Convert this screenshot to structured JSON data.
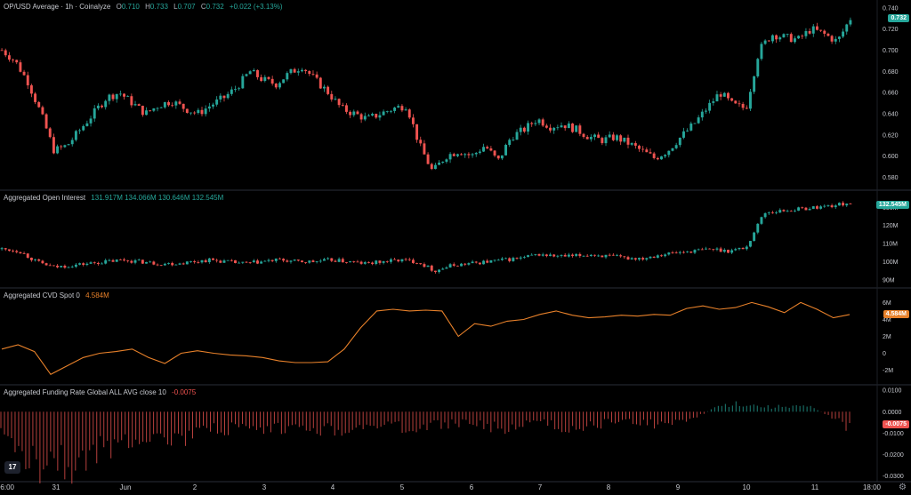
{
  "main": {
    "title": "OP/USD Average · 1h · Coinalyze",
    "o_label": "O",
    "o": "0.710",
    "h_label": "H",
    "h": "0.733",
    "l_label": "L",
    "l": "0.707",
    "c_label": "C",
    "c": "0.732",
    "change": "+0.022 (+3.13%)",
    "last_tag": "0.732"
  },
  "oi": {
    "title": "Aggregated Open Interest",
    "values": "131.917M 134.066M 130.646M 132.545M",
    "last_tag": "132.545M"
  },
  "cvd": {
    "title": "Aggregated CVD Spot 0",
    "value": "4.584M",
    "last_tag": "4.584M"
  },
  "fr": {
    "title": "Aggregated Funding Rate Global ALL AVG close 10",
    "value": "-0.0075",
    "last_tag": "-0.0075"
  },
  "xaxis": [
    "06:00",
    "31",
    "Jun",
    "2",
    "3",
    "4",
    "5",
    "6",
    "7",
    "8",
    "9",
    "10",
    "11",
    "18:00"
  ],
  "logo": "17",
  "colors": {
    "up": "#26a69a",
    "down": "#ef5350",
    "cvd": "#e8812a",
    "bg": "#000000",
    "tag_green": "#26a69a",
    "tag_orange": "#e8812a",
    "tag_red": "#ef5350"
  },
  "chart_data": [
    {
      "type": "candlestick",
      "name": "OP/USD price",
      "yticks": [
        "0.740",
        "0.720",
        "0.700",
        "0.680",
        "0.660",
        "0.640",
        "0.620",
        "0.600",
        "0.580"
      ],
      "ylim": [
        0.572,
        0.744
      ],
      "x": [
        0,
        11.5
      ],
      "close_path": [
        0.7,
        0.69,
        0.67,
        0.64,
        0.605,
        0.61,
        0.625,
        0.64,
        0.655,
        0.66,
        0.65,
        0.64,
        0.648,
        0.652,
        0.645,
        0.64,
        0.648,
        0.655,
        0.665,
        0.68,
        0.672,
        0.668,
        0.678,
        0.685,
        0.672,
        0.66,
        0.645,
        0.64,
        0.635,
        0.64,
        0.645,
        0.648,
        0.61,
        0.585,
        0.6,
        0.605,
        0.6,
        0.61,
        0.595,
        0.618,
        0.625,
        0.635,
        0.628,
        0.63,
        0.625,
        0.618,
        0.615,
        0.618,
        0.612,
        0.605,
        0.598,
        0.605,
        0.618,
        0.63,
        0.645,
        0.66,
        0.648,
        0.645,
        0.7,
        0.715,
        0.712,
        0.71,
        0.72,
        0.715,
        0.708,
        0.73
      ]
    },
    {
      "type": "candlestick",
      "name": "Aggregated Open Interest",
      "yticks": [
        "130M",
        "120M",
        "110M",
        "100M",
        "90M"
      ],
      "ylim": [
        88,
        137
      ],
      "close_path": [
        107,
        106,
        100,
        97,
        98,
        99,
        100,
        101,
        100,
        99,
        99,
        100,
        101,
        100,
        99,
        100,
        101,
        100,
        100,
        101,
        100,
        99,
        100,
        101,
        100,
        95,
        98,
        99,
        100,
        101,
        102,
        104,
        103,
        103,
        104,
        103,
        102,
        102,
        104,
        105,
        106,
        107,
        106,
        108,
        127,
        128,
        129,
        130,
        131,
        132.5
      ]
    },
    {
      "type": "line",
      "name": "Aggregated CVD Spot",
      "yticks": [
        "6M",
        "4M",
        "2M",
        "0",
        "-2M"
      ],
      "ylim": [
        -3.2,
        7.2
      ],
      "values": [
        0.5,
        1.0,
        0.2,
        -2.5,
        -1.5,
        -0.5,
        0.0,
        0.2,
        0.5,
        -0.5,
        -1.2,
        0.0,
        0.3,
        0.0,
        -0.2,
        -0.3,
        -0.5,
        -0.9,
        -1.1,
        -1.1,
        -1.0,
        0.5,
        3.0,
        5.0,
        5.2,
        5.0,
        5.1,
        5.0,
        2.0,
        3.5,
        3.2,
        3.8,
        4.0,
        4.6,
        5.0,
        4.5,
        4.2,
        4.3,
        4.5,
        4.4,
        4.6,
        4.5,
        5.3,
        5.6,
        5.2,
        5.4,
        6.0,
        5.5,
        4.8,
        6.0,
        5.2,
        4.2,
        4.584
      ]
    },
    {
      "type": "bar",
      "name": "Aggregated Funding Rate",
      "yticks": [
        "0.0100",
        "0.0000",
        "-0.0100",
        "-0.0200",
        "-0.0300"
      ],
      "ylim": [
        -0.031,
        0.0105
      ],
      "values": [
        -0.012,
        -0.018,
        -0.024,
        -0.021,
        -0.026,
        -0.019,
        -0.015,
        -0.012,
        -0.01,
        -0.014,
        -0.011,
        -0.009,
        -0.008,
        -0.01,
        -0.009,
        -0.008,
        -0.007,
        -0.009,
        -0.008,
        -0.007,
        -0.006,
        -0.008,
        -0.007,
        -0.006,
        -0.005,
        -0.007,
        -0.008,
        -0.006,
        -0.005,
        -0.007,
        -0.008,
        -0.006,
        -0.004,
        -0.005,
        -0.006,
        -0.004,
        -0.003,
        0.002,
        0.004,
        0.003,
        0.002,
        0.003,
        0.002,
        -0.002,
        -0.0075
      ]
    }
  ]
}
